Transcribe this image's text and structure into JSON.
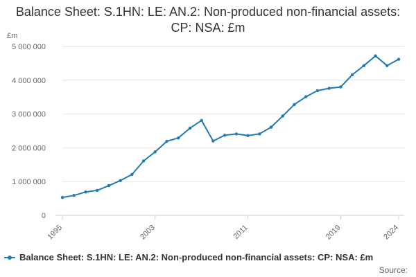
{
  "chart_data": {
    "type": "line",
    "title": "Balance Sheet: S.1HN: LE: AN.2: Non-produced non-financial assets: CP: NSA: £m",
    "unit_label": "£m",
    "xlabel": "",
    "ylabel": "",
    "x": [
      1995,
      1996,
      1997,
      1998,
      1999,
      2000,
      2001,
      2002,
      2003,
      2004,
      2005,
      2006,
      2007,
      2008,
      2009,
      2010,
      2011,
      2012,
      2013,
      2014,
      2015,
      2016,
      2017,
      2018,
      2019,
      2020,
      2021,
      2022,
      2023,
      2024
    ],
    "x_tick_labels": [
      "1995",
      "2003",
      "2011",
      "2019",
      "2024"
    ],
    "x_tick_values": [
      1995,
      2003,
      2011,
      2019,
      2024
    ],
    "xlim": [
      1995,
      2024
    ],
    "ylim": [
      0,
      5000000
    ],
    "y_ticks": [
      0,
      1000000,
      2000000,
      3000000,
      4000000,
      5000000
    ],
    "y_tick_labels": [
      "0",
      "1 000 000",
      "2 000 000",
      "3 000 000",
      "4 000 000",
      "5 000 000"
    ],
    "grid": true,
    "legend_position": "bottom",
    "series": [
      {
        "name": "Balance Sheet: S.1HN: LE: AN.2: Non-produced non-financial assets: CP: NSA: £m",
        "color": "#1f7ab8",
        "values": [
          530000,
          590000,
          690000,
          740000,
          880000,
          1030000,
          1210000,
          1610000,
          1880000,
          2190000,
          2290000,
          2580000,
          2810000,
          2200000,
          2370000,
          2410000,
          2360000,
          2410000,
          2610000,
          2940000,
          3280000,
          3510000,
          3690000,
          3760000,
          3800000,
          4160000,
          4430000,
          4720000,
          4430000,
          4620000
        ]
      }
    ]
  },
  "source_label": "Source:"
}
